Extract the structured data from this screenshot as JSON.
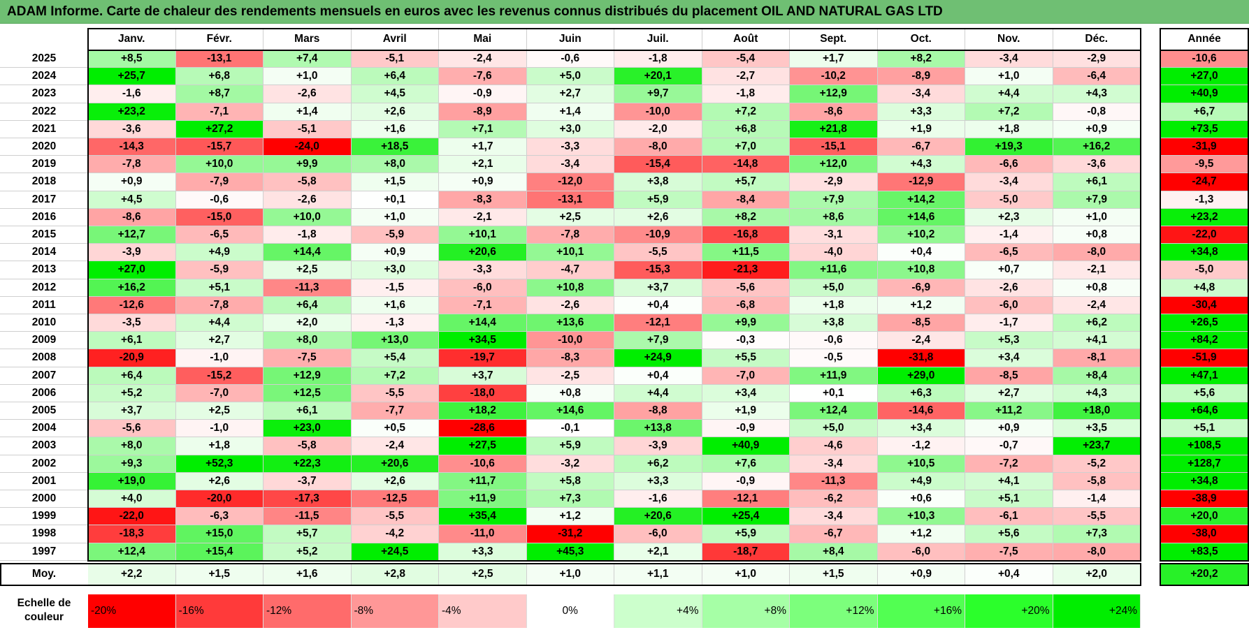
{
  "title": "ADAM Informe. Carte de chaleur des rendements mensuels en euros avec les revenus connus distribués du placement OIL AND NATURAL GAS LTD",
  "chart_data": {
    "type": "heatmap",
    "columns": [
      "Janv.",
      "Févr.",
      "Mars",
      "Avril",
      "Mai",
      "Juin",
      "Juil.",
      "Août",
      "Sept.",
      "Oct.",
      "Nov.",
      "Déc."
    ],
    "year_header": "Année",
    "rows": [
      {
        "year": "2025",
        "values": [
          8.5,
          -13.1,
          7.4,
          -5.1,
          -2.4,
          -0.6,
          -1.8,
          -5.4,
          1.7,
          8.2,
          -3.4,
          -2.9
        ],
        "annual": -10.6
      },
      {
        "year": "2024",
        "values": [
          25.7,
          6.8,
          1.0,
          6.4,
          -7.6,
          5.0,
          20.1,
          -2.7,
          -10.2,
          -8.9,
          1.0,
          -6.4
        ],
        "annual": 27.0
      },
      {
        "year": "2023",
        "values": [
          -1.6,
          8.7,
          -2.6,
          4.5,
          -0.9,
          2.7,
          9.7,
          -1.8,
          12.9,
          -3.4,
          4.4,
          4.3
        ],
        "annual": 40.9
      },
      {
        "year": "2022",
        "values": [
          23.2,
          -7.1,
          1.4,
          2.6,
          -8.9,
          1.4,
          -10.0,
          7.2,
          -8.6,
          3.3,
          7.2,
          -0.8
        ],
        "annual": 6.7
      },
      {
        "year": "2021",
        "values": [
          -3.6,
          27.2,
          -5.1,
          1.6,
          7.1,
          3.0,
          -2.0,
          6.8,
          21.8,
          1.9,
          1.8,
          0.9
        ],
        "annual": 73.5
      },
      {
        "year": "2020",
        "values": [
          -14.3,
          -15.7,
          -24.0,
          18.5,
          1.7,
          -3.3,
          -8.0,
          7.0,
          -15.1,
          -6.7,
          19.3,
          16.2
        ],
        "annual": -31.9
      },
      {
        "year": "2019",
        "values": [
          -7.8,
          10.0,
          9.9,
          8.0,
          2.1,
          -3.4,
          -15.4,
          -14.8,
          12.0,
          4.3,
          -6.6,
          -3.6
        ],
        "annual": -9.5
      },
      {
        "year": "2018",
        "values": [
          0.9,
          -7.9,
          -5.8,
          1.5,
          0.9,
          -12.0,
          3.8,
          5.7,
          -2.9,
          -12.9,
          -3.4,
          6.1
        ],
        "annual": -24.7
      },
      {
        "year": "2017",
        "values": [
          4.5,
          -0.6,
          -2.6,
          0.1,
          -8.3,
          -13.1,
          5.9,
          -8.4,
          7.9,
          14.2,
          -5.0,
          7.9
        ],
        "annual": -1.3
      },
      {
        "year": "2016",
        "values": [
          -8.6,
          -15.0,
          10.0,
          1.0,
          -2.1,
          2.5,
          2.6,
          8.2,
          8.6,
          14.6,
          2.3,
          1.0
        ],
        "annual": 23.2
      },
      {
        "year": "2015",
        "values": [
          12.7,
          -6.5,
          -1.8,
          -5.9,
          10.1,
          -7.8,
          -10.9,
          -16.8,
          -3.1,
          10.2,
          -1.4,
          0.8
        ],
        "annual": -22.0
      },
      {
        "year": "2014",
        "values": [
          -3.9,
          4.9,
          14.4,
          0.9,
          20.6,
          10.1,
          -5.5,
          11.5,
          -4.0,
          0.4,
          -6.5,
          -8.0
        ],
        "annual": 34.8
      },
      {
        "year": "2013",
        "values": [
          27.0,
          -5.9,
          2.5,
          3.0,
          -3.3,
          -4.7,
          -15.3,
          -21.3,
          11.6,
          10.8,
          0.7,
          -2.1
        ],
        "annual": -5.0
      },
      {
        "year": "2012",
        "values": [
          16.2,
          5.1,
          -11.3,
          -1.5,
          -6.0,
          10.8,
          3.7,
          -5.6,
          5.0,
          -6.9,
          -2.6,
          0.8
        ],
        "annual": 4.8
      },
      {
        "year": "2011",
        "values": [
          -12.6,
          -7.8,
          6.4,
          1.6,
          -7.1,
          -2.6,
          0.4,
          -6.8,
          1.8,
          1.2,
          -6.0,
          -2.4
        ],
        "annual": -30.4
      },
      {
        "year": "2010",
        "values": [
          -3.5,
          4.4,
          2.0,
          -1.3,
          14.4,
          13.6,
          -12.1,
          9.9,
          3.8,
          -8.5,
          -1.7,
          6.2
        ],
        "annual": 26.5
      },
      {
        "year": "2009",
        "values": [
          6.1,
          2.7,
          8.0,
          13.0,
          34.5,
          -10.0,
          7.9,
          -0.3,
          -0.6,
          -2.4,
          5.3,
          4.1
        ],
        "annual": 84.2
      },
      {
        "year": "2008",
        "values": [
          -20.9,
          -1.0,
          -7.5,
          5.4,
          -19.7,
          -8.3,
          24.9,
          5.5,
          -0.5,
          -31.8,
          3.4,
          -8.1
        ],
        "annual": -51.9
      },
      {
        "year": "2007",
        "values": [
          6.4,
          -15.2,
          12.9,
          7.2,
          3.7,
          -2.5,
          0.4,
          -7.0,
          11.9,
          29.0,
          -8.5,
          8.4
        ],
        "annual": 47.1
      },
      {
        "year": "2006",
        "values": [
          5.2,
          -7.0,
          12.5,
          -5.5,
          -18.0,
          0.8,
          4.4,
          3.4,
          0.1,
          6.3,
          2.7,
          4.3
        ],
        "annual": 5.6
      },
      {
        "year": "2005",
        "values": [
          3.7,
          2.5,
          6.1,
          -7.7,
          18.2,
          14.6,
          -8.8,
          1.9,
          12.4,
          -14.6,
          11.2,
          18.0
        ],
        "annual": 64.6
      },
      {
        "year": "2004",
        "values": [
          -5.6,
          -1.0,
          23.0,
          0.5,
          -28.6,
          -0.1,
          13.8,
          -0.9,
          5.0,
          3.4,
          0.9,
          3.5
        ],
        "annual": 5.1
      },
      {
        "year": "2003",
        "values": [
          8.0,
          1.8,
          -5.8,
          -2.4,
          27.5,
          5.9,
          -3.9,
          40.9,
          -4.6,
          -1.2,
          -0.7,
          23.7
        ],
        "annual": 108.5
      },
      {
        "year": "2002",
        "values": [
          9.3,
          52.3,
          22.3,
          20.6,
          -10.6,
          -3.2,
          6.2,
          7.6,
          -3.4,
          10.5,
          -7.2,
          -5.2
        ],
        "annual": 128.7
      },
      {
        "year": "2001",
        "values": [
          19.0,
          2.6,
          -3.7,
          2.6,
          11.7,
          5.8,
          3.3,
          -0.9,
          -11.3,
          4.9,
          4.1,
          -5.8
        ],
        "annual": 34.8
      },
      {
        "year": "2000",
        "values": [
          4.0,
          -20.0,
          -17.3,
          -12.5,
          11.9,
          7.3,
          -1.6,
          -12.1,
          -6.2,
          0.6,
          5.1,
          -1.4
        ],
        "annual": -38.9
      },
      {
        "year": "1999",
        "values": [
          -22.0,
          -6.3,
          -11.5,
          -5.5,
          35.4,
          1.2,
          20.6,
          25.4,
          -3.4,
          10.3,
          -6.1,
          -5.5
        ],
        "annual": 20.0
      },
      {
        "year": "1998",
        "values": [
          -18.3,
          15.0,
          5.7,
          -4.2,
          -11.0,
          -31.2,
          -6.0,
          5.9,
          -6.7,
          1.2,
          5.6,
          7.3
        ],
        "annual": -38.0
      },
      {
        "year": "1997",
        "values": [
          12.4,
          15.4,
          5.2,
          24.5,
          3.3,
          45.3,
          2.1,
          -18.7,
          8.4,
          -6.0,
          -7.5,
          -8.0
        ],
        "annual": 83.5
      }
    ],
    "average": {
      "label": "Moy.",
      "values": [
        2.2,
        1.5,
        1.6,
        2.8,
        2.5,
        1.0,
        1.1,
        1.0,
        1.5,
        0.9,
        0.4,
        2.0
      ],
      "annual": 20.2
    },
    "scale": {
      "label_line1": "Echelle de",
      "label_line2": "couleur",
      "steps": [
        {
          "label": "-20%",
          "value": -20,
          "color": "#ff0000"
        },
        {
          "label": "-16%",
          "value": -16,
          "color": "#ff3a3a"
        },
        {
          "label": "-12%",
          "value": -12,
          "color": "#ff6b6b"
        },
        {
          "label": "-8%",
          "value": -8,
          "color": "#ff9797"
        },
        {
          "label": "-4%",
          "value": -4,
          "color": "#ffcaca"
        },
        {
          "label": "0%",
          "value": 0,
          "color": "#ffffff"
        },
        {
          "label": "+4%",
          "value": 4,
          "color": "#ccffcc"
        },
        {
          "label": "+8%",
          "value": 8,
          "color": "#a6ffa6"
        },
        {
          "label": "+12%",
          "value": 12,
          "color": "#7cff7c"
        },
        {
          "label": "+16%",
          "value": 16,
          "color": "#52ff52"
        },
        {
          "label": "+20%",
          "value": 20,
          "color": "#2bff2b"
        },
        {
          "label": "+24%",
          "value": 24,
          "color": "#00ee00"
        }
      ]
    }
  }
}
